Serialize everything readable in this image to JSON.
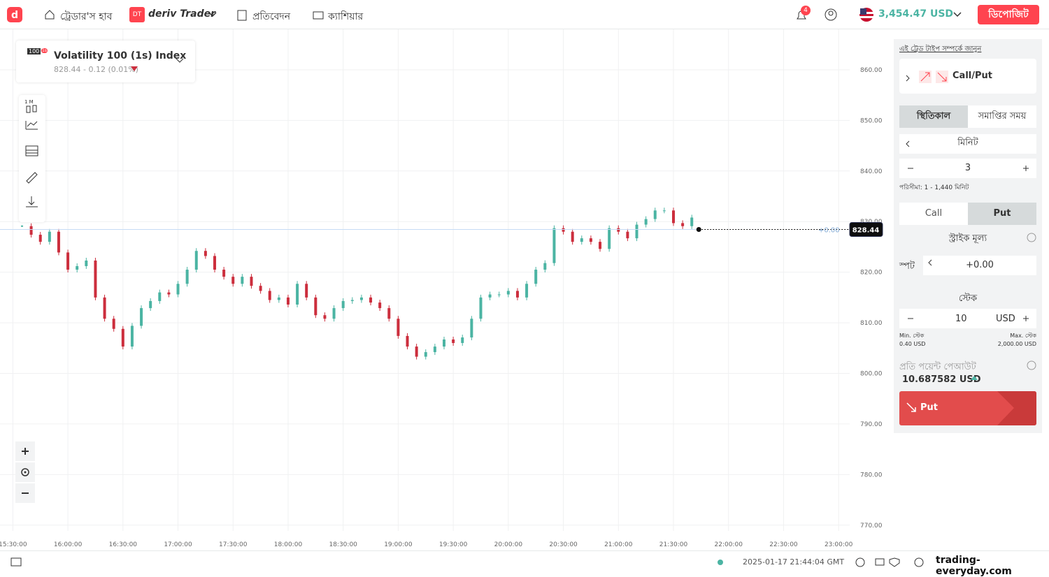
{
  "nav": {
    "traders_hub": "ট্রেডার'স হাব",
    "dt_badge": "DT",
    "brand": "deriv Trader",
    "reports": "প্রতিবেদন",
    "cashier": "ক্যাশিয়ার",
    "notifications": "4",
    "balance": "3,454.47 USD",
    "deposit": "ডিপোজিট"
  },
  "symbol": {
    "badge": "100",
    "badge_sub": "1s",
    "name": "Volatility 100 (1s) Index",
    "quote": "828.44 - 0.12 (0.01%)"
  },
  "toolbar": {
    "interval": "1 M"
  },
  "chart_data": {
    "type": "candlestick",
    "x": [
      "15:35:00",
      "15:40:00",
      "15:45:00",
      "15:50:00",
      "15:55:00",
      "16:00:00",
      "16:05:00",
      "16:10:00",
      "16:15:00",
      "16:20:00",
      "16:25:00",
      "16:30:00",
      "16:35:00",
      "16:40:00",
      "16:45:00",
      "16:50:00",
      "16:55:00",
      "17:00:00",
      "17:05:00",
      "17:10:00",
      "17:15:00",
      "17:20:00",
      "17:25:00",
      "17:30:00",
      "17:35:00",
      "17:40:00",
      "17:45:00",
      "17:50:00",
      "17:55:00",
      "18:00:00",
      "18:05:00",
      "18:10:00",
      "18:15:00",
      "18:20:00",
      "18:25:00",
      "18:30:00",
      "18:35:00",
      "18:40:00",
      "18:45:00",
      "18:50:00",
      "18:55:00",
      "19:00:00",
      "19:05:00",
      "19:10:00",
      "19:15:00",
      "19:20:00",
      "19:25:00",
      "19:30:00",
      "19:35:00",
      "19:40:00",
      "19:45:00",
      "19:50:00",
      "19:55:00",
      "20:00:00",
      "20:05:00",
      "20:10:00",
      "20:15:00",
      "20:20:00",
      "20:25:00",
      "20:30:00",
      "20:35:00",
      "20:40:00",
      "20:45:00",
      "20:50:00",
      "20:55:00",
      "21:00:00",
      "21:05:00",
      "21:10:00",
      "21:15:00",
      "21:20:00",
      "21:25:00",
      "21:30:00",
      "21:35:00",
      "21:40:00"
    ],
    "values": [
      829.1,
      827.4,
      826,
      828,
      823.9,
      820.5,
      821.2,
      822.3,
      815,
      810.8,
      808.8,
      805.3,
      809.4,
      812.9,
      814.3,
      816,
      815.6,
      817.7,
      820.5,
      824.2,
      823.2,
      820.5,
      819.1,
      817.7,
      819.1,
      817.3,
      816.3,
      814.5,
      815,
      813.6,
      817.7,
      815,
      811.5,
      810.8,
      812.9,
      814.3,
      814.5,
      815,
      814,
      812.9,
      810.8,
      807.4,
      805.3,
      803.3,
      804.2,
      805.3,
      806.7,
      806,
      807.1,
      810.8,
      815,
      815.6,
      815.6,
      816.3,
      815,
      817.7,
      820.5,
      821.8,
      828.7,
      828,
      826,
      826.7,
      826,
      824.6,
      828.7,
      828,
      826.7,
      829.4,
      830.5,
      832.2,
      832.2,
      829.7,
      829.1,
      830.8
    ],
    "up_color": "#4bb4a3",
    "down_color": "#cc2e3d",
    "xlim": [
      "15:23:00",
      "23:27:00"
    ],
    "ylim": [
      765,
      868
    ],
    "xticks": [
      "15:30:00",
      "16:00:00",
      "16:30:00",
      "17:00:00",
      "17:30:00",
      "18:00:00",
      "18:30:00",
      "19:00:00",
      "19:30:00",
      "20:00:00",
      "20:30:00",
      "21:00:00",
      "21:30:00",
      "22:00:00",
      "22:30:00",
      "23:00:00"
    ],
    "yticks": [
      {
        "value": 770,
        "label": "770.00"
      },
      {
        "value": 780,
        "label": "780.00"
      },
      {
        "value": 790,
        "label": "790.00"
      },
      {
        "value": 800,
        "label": "800.00"
      },
      {
        "value": 810,
        "label": "810.00"
      },
      {
        "value": 820,
        "label": "820.00"
      },
      {
        "value": 830,
        "label": "830.00"
      },
      {
        "value": 840,
        "label": "840.00"
      },
      {
        "value": 850,
        "label": "850.00"
      },
      {
        "value": 860,
        "label": "860.00"
      }
    ],
    "grid": true,
    "current_price": 828.44,
    "barrier_label": "+0.00"
  },
  "trade": {
    "learn_link": "এই ট্রেড টাইপ সম্পর্কে জানুন",
    "trade_type": "Call/Put",
    "tab_duration": "স্থিতিকাল",
    "tab_end_time": "সমাপ্তির সময়",
    "unit": "মিনিট",
    "duration": "3",
    "range": "পরিসীমা: 1 - 1,440 মিনিট",
    "call": "Call",
    "put": "Put",
    "strike_title": "স্ট্রাইক মূল্য",
    "spot": "স্পট",
    "strike": "+0.00",
    "stake_title": "স্টেক",
    "stake": "10",
    "currency": "USD",
    "min_label": "Min. স্টেক",
    "min_value": "0.40 USD",
    "max_label": "Max. স্টেক",
    "max_value": "2,000.00 USD",
    "payout_title": "প্রতি পয়েন্ট পেআউট",
    "payout": "10.687582 USD",
    "purchase": "Put"
  },
  "footer": {
    "timestamp": "2025-01-17 21:44:04 GMT",
    "watermark": "trading-everyday.com"
  }
}
